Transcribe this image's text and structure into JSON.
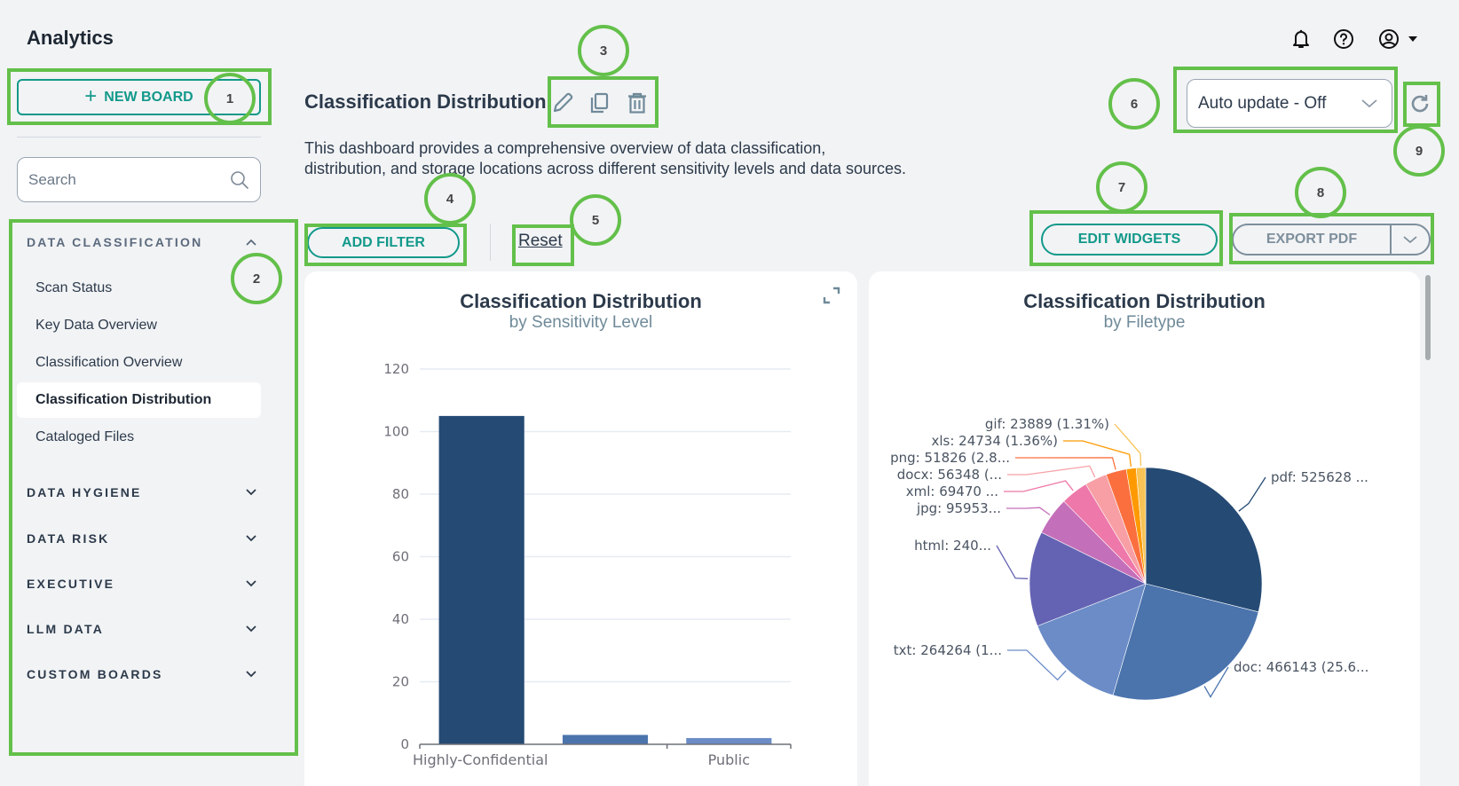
{
  "app": {
    "title": "Analytics"
  },
  "topbar": {
    "icons": [
      "bell-icon",
      "help-icon",
      "user-account-icon",
      "caret-down-icon"
    ]
  },
  "sidebar": {
    "new_board_label": "NEW BOARD",
    "search_placeholder": "Search",
    "sections": [
      {
        "label": "DATA CLASSIFICATION",
        "expanded": true,
        "items": [
          {
            "label": "Scan Status",
            "active": false
          },
          {
            "label": "Key Data Overview",
            "active": false
          },
          {
            "label": "Classification Overview",
            "active": false
          },
          {
            "label": "Classification Distribution",
            "active": true
          },
          {
            "label": "Cataloged Files",
            "active": false
          }
        ]
      },
      {
        "label": "DATA HYGIENE",
        "expanded": false
      },
      {
        "label": "DATA RISK",
        "expanded": false
      },
      {
        "label": "EXECUTIVE",
        "expanded": false
      },
      {
        "label": "LLM DATA",
        "expanded": false
      },
      {
        "label": "CUSTOM BOARDS",
        "expanded": false
      }
    ]
  },
  "header": {
    "title": "Classification Distribution",
    "description": "This dashboard provides a comprehensive overview of data classification, distribution, and storage locations across different sensitivity levels and data sources.",
    "add_filter_label": "ADD FILTER",
    "reset_label": "Reset",
    "auto_update_value": "Auto update - Off",
    "edit_widgets_label": "EDIT WIDGETS",
    "export_pdf_label": "EXPORT PDF"
  },
  "annotations": [
    "1",
    "2",
    "3",
    "4",
    "5",
    "6",
    "7",
    "8",
    "9"
  ],
  "colors": {
    "accent": "#12998a",
    "annotation": "#63c04a",
    "bar_dark": "#254a74",
    "export_gray": "#7d8f9c"
  },
  "chart_data": [
    {
      "type": "bar",
      "title": "Classification Distribution",
      "subtitle": "by Sensitivity Level",
      "categories": [
        "Highly-Confidential",
        "",
        "Public"
      ],
      "values": [
        105,
        3,
        2
      ],
      "bar_colors": [
        "#254a74",
        "#4b74ad",
        "#6b8cc7"
      ],
      "ylim": [
        0,
        120
      ],
      "yticks": [
        0,
        20,
        40,
        60,
        80,
        100,
        120
      ],
      "xlabel": "",
      "ylabel": "",
      "grid": true
    },
    {
      "type": "pie",
      "title": "Classification Distribution",
      "subtitle": "by Filetype",
      "slices": [
        {
          "name": "pdf",
          "value": 525628,
          "label": "pdf: 525628 ...",
          "color": "#254a74"
        },
        {
          "name": "doc",
          "value": 466143,
          "label": "doc: 466143 (25.6...",
          "color": "#4b74ad"
        },
        {
          "name": "txt",
          "value": 264264,
          "label": "txt: 264264 (1...",
          "color": "#6b8cc7"
        },
        {
          "name": "html",
          "value": 240000,
          "label": "html: 240...",
          "color": "#6463b3"
        },
        {
          "name": "jpg",
          "value": 95953,
          "label": "jpg: 95953...",
          "color": "#c46fb9"
        },
        {
          "name": "xml",
          "value": 69470,
          "label": "xml: 69470 ...",
          "color": "#ee78a9"
        },
        {
          "name": "docx",
          "value": 56348,
          "label": "docx: 56348 (...",
          "color": "#f79fa5"
        },
        {
          "name": "png",
          "value": 51826,
          "label": "png: 51826 (2.8...",
          "color": "#fb6f3f"
        },
        {
          "name": "xls",
          "value": 24734,
          "label": "xls: 24734 (1.36%)",
          "color": "#fe9a00"
        },
        {
          "name": "gif",
          "value": 23889,
          "label": "gif: 23889 (1.31%)",
          "color": "#f7c356"
        }
      ]
    }
  ]
}
